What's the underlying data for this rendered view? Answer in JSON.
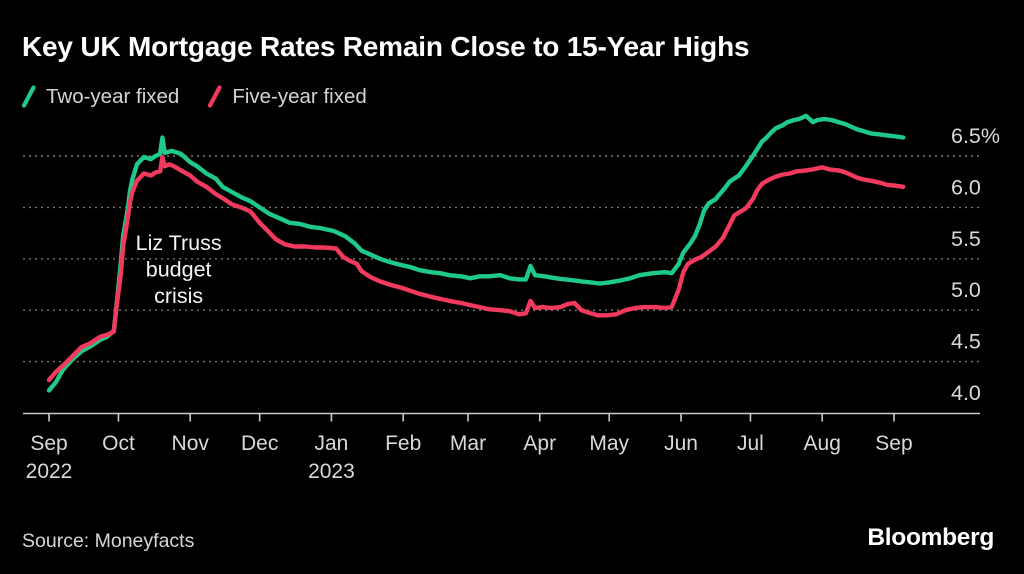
{
  "header": {
    "title": "Key UK Mortgage Rates Remain Close to 15-Year Highs"
  },
  "legend": [
    {
      "label": "Two-year fixed",
      "color": "#1ec98a"
    },
    {
      "label": "Five-year fixed",
      "color": "#f23a5f"
    }
  ],
  "footer": {
    "source": "Source: Moneyfacts",
    "brand": "Bloomberg"
  },
  "chart_data": {
    "type": "line",
    "title": "Key UK Mortgage Rates Remain Close to 15-Year Highs",
    "x_unit": "days since 2022-09-01",
    "x_domain": [
      0,
      369
    ],
    "y_domain": [
      4.0,
      6.9
    ],
    "ylabel": "rate %",
    "grid": "horizontal-dashed",
    "legend_position": "top-left",
    "grid_color": "#787878",
    "axis_color": "#c9c9c9",
    "axis_text_color": "#d9d9d9",
    "annotation": {
      "text": [
        "Liz Truss",
        "budget",
        "crisis"
      ],
      "day": 56,
      "value": 5.4
    },
    "y_ticks": [
      {
        "value": 6.5,
        "label": "6.5%"
      },
      {
        "value": 6.0,
        "label": "6.0"
      },
      {
        "value": 5.5,
        "label": "5.5"
      },
      {
        "value": 5.0,
        "label": "5.0"
      },
      {
        "value": 4.5,
        "label": "4.5"
      },
      {
        "value": 4.0,
        "label": "4.0"
      }
    ],
    "x_ticks": [
      {
        "day": 0,
        "label": "Sep",
        "sublabel": "2022"
      },
      {
        "day": 30,
        "label": "Oct"
      },
      {
        "day": 61,
        "label": "Nov"
      },
      {
        "day": 91,
        "label": "Dec"
      },
      {
        "day": 122,
        "label": "Jan",
        "sublabel": "2023"
      },
      {
        "day": 153,
        "label": "Feb"
      },
      {
        "day": 181,
        "label": "Mar"
      },
      {
        "day": 212,
        "label": "Apr"
      },
      {
        "day": 242,
        "label": "May"
      },
      {
        "day": 273,
        "label": "Jun"
      },
      {
        "day": 303,
        "label": "Jul"
      },
      {
        "day": 334,
        "label": "Aug"
      },
      {
        "day": 365,
        "label": "Sep"
      }
    ],
    "series": [
      {
        "id": "two-year-fixed",
        "name": "Two-year fixed",
        "color": "#1ec98a",
        "points": [
          [
            0,
            4.22
          ],
          [
            3,
            4.3
          ],
          [
            6,
            4.42
          ],
          [
            10,
            4.52
          ],
          [
            14,
            4.6
          ],
          [
            18,
            4.65
          ],
          [
            22,
            4.71
          ],
          [
            25,
            4.74
          ],
          [
            28,
            4.8
          ],
          [
            29,
            5.0
          ],
          [
            31,
            5.46
          ],
          [
            32,
            5.72
          ],
          [
            34,
            5.98
          ],
          [
            35,
            6.16
          ],
          [
            36,
            6.27
          ],
          [
            38,
            6.42
          ],
          [
            41,
            6.49
          ],
          [
            44,
            6.47
          ],
          [
            46,
            6.5
          ],
          [
            48,
            6.52
          ],
          [
            49,
            6.68
          ],
          [
            50,
            6.53
          ],
          [
            53,
            6.55
          ],
          [
            57,
            6.52
          ],
          [
            61,
            6.44
          ],
          [
            64,
            6.4
          ],
          [
            68,
            6.33
          ],
          [
            72,
            6.28
          ],
          [
            75,
            6.2
          ],
          [
            79,
            6.15
          ],
          [
            83,
            6.1
          ],
          [
            87,
            6.06
          ],
          [
            91,
            6.0
          ],
          [
            95,
            5.94
          ],
          [
            100,
            5.89
          ],
          [
            104,
            5.85
          ],
          [
            108,
            5.84
          ],
          [
            113,
            5.81
          ],
          [
            117,
            5.8
          ],
          [
            123,
            5.77
          ],
          [
            128,
            5.72
          ],
          [
            132,
            5.65
          ],
          [
            135,
            5.58
          ],
          [
            139,
            5.54
          ],
          [
            143,
            5.5
          ],
          [
            147,
            5.47
          ],
          [
            152,
            5.44
          ],
          [
            156,
            5.42
          ],
          [
            160,
            5.39
          ],
          [
            165,
            5.37
          ],
          [
            169,
            5.36
          ],
          [
            173,
            5.34
          ],
          [
            178,
            5.33
          ],
          [
            182,
            5.31
          ],
          [
            186,
            5.33
          ],
          [
            190,
            5.33
          ],
          [
            195,
            5.34
          ],
          [
            199,
            5.31
          ],
          [
            203,
            5.3
          ],
          [
            206,
            5.3
          ],
          [
            208,
            5.43
          ],
          [
            210,
            5.34
          ],
          [
            214,
            5.33
          ],
          [
            219,
            5.31
          ],
          [
            223,
            5.3
          ],
          [
            227,
            5.29
          ],
          [
            230,
            5.28
          ],
          [
            234,
            5.27
          ],
          [
            238,
            5.26
          ],
          [
            242,
            5.27
          ],
          [
            247,
            5.29
          ],
          [
            251,
            5.31
          ],
          [
            255,
            5.34
          ],
          [
            261,
            5.36
          ],
          [
            266,
            5.37
          ],
          [
            269,
            5.36
          ],
          [
            272,
            5.45
          ],
          [
            274,
            5.56
          ],
          [
            277,
            5.65
          ],
          [
            279,
            5.72
          ],
          [
            281,
            5.83
          ],
          [
            283,
            5.97
          ],
          [
            285,
            6.04
          ],
          [
            288,
            6.08
          ],
          [
            289,
            6.11
          ],
          [
            292,
            6.19
          ],
          [
            294,
            6.25
          ],
          [
            296,
            6.28
          ],
          [
            298,
            6.31
          ],
          [
            301,
            6.4
          ],
          [
            304,
            6.5
          ],
          [
            306,
            6.57
          ],
          [
            308,
            6.64
          ],
          [
            310,
            6.68
          ],
          [
            312,
            6.73
          ],
          [
            314,
            6.77
          ],
          [
            317,
            6.8
          ],
          [
            319,
            6.83
          ],
          [
            322,
            6.85
          ],
          [
            324,
            6.86
          ],
          [
            327,
            6.89
          ],
          [
            330,
            6.83
          ],
          [
            332,
            6.85
          ],
          [
            335,
            6.86
          ],
          [
            338,
            6.85
          ],
          [
            341,
            6.83
          ],
          [
            344,
            6.81
          ],
          [
            347,
            6.78
          ],
          [
            349,
            6.76
          ],
          [
            352,
            6.74
          ],
          [
            355,
            6.72
          ],
          [
            359,
            6.71
          ],
          [
            362,
            6.7
          ],
          [
            366,
            6.69
          ],
          [
            369,
            6.68
          ]
        ]
      },
      {
        "id": "five-year-fixed",
        "name": "Five-year fixed",
        "color": "#f23a5f",
        "points": [
          [
            0,
            4.32
          ],
          [
            3,
            4.4
          ],
          [
            6,
            4.46
          ],
          [
            10,
            4.55
          ],
          [
            14,
            4.64
          ],
          [
            18,
            4.68
          ],
          [
            22,
            4.74
          ],
          [
            25,
            4.76
          ],
          [
            28,
            4.79
          ],
          [
            29,
            5.0
          ],
          [
            31,
            5.35
          ],
          [
            32,
            5.62
          ],
          [
            34,
            5.89
          ],
          [
            35,
            6.05
          ],
          [
            36,
            6.15
          ],
          [
            38,
            6.26
          ],
          [
            41,
            6.33
          ],
          [
            44,
            6.31
          ],
          [
            46,
            6.34
          ],
          [
            48,
            6.35
          ],
          [
            49,
            6.49
          ],
          [
            50,
            6.4
          ],
          [
            52,
            6.42
          ],
          [
            54,
            6.4
          ],
          [
            57,
            6.36
          ],
          [
            61,
            6.31
          ],
          [
            64,
            6.25
          ],
          [
            68,
            6.2
          ],
          [
            72,
            6.13
          ],
          [
            75,
            6.09
          ],
          [
            79,
            6.03
          ],
          [
            83,
            6.0
          ],
          [
            87,
            5.96
          ],
          [
            91,
            5.85
          ],
          [
            95,
            5.76
          ],
          [
            98,
            5.69
          ],
          [
            102,
            5.64
          ],
          [
            106,
            5.62
          ],
          [
            111,
            5.62
          ],
          [
            115,
            5.61
          ],
          [
            119,
            5.61
          ],
          [
            124,
            5.6
          ],
          [
            127,
            5.52
          ],
          [
            130,
            5.48
          ],
          [
            133,
            5.45
          ],
          [
            135,
            5.38
          ],
          [
            139,
            5.32
          ],
          [
            143,
            5.28
          ],
          [
            147,
            5.25
          ],
          [
            152,
            5.22
          ],
          [
            156,
            5.19
          ],
          [
            160,
            5.16
          ],
          [
            165,
            5.13
          ],
          [
            169,
            5.11
          ],
          [
            173,
            5.09
          ],
          [
            178,
            5.07
          ],
          [
            182,
            5.05
          ],
          [
            186,
            5.03
          ],
          [
            190,
            5.01
          ],
          [
            195,
            5.0
          ],
          [
            199,
            4.99
          ],
          [
            203,
            4.96
          ],
          [
            206,
            4.97
          ],
          [
            208,
            5.09
          ],
          [
            210,
            5.02
          ],
          [
            213,
            5.03
          ],
          [
            217,
            5.02
          ],
          [
            221,
            5.03
          ],
          [
            224,
            5.06
          ],
          [
            227,
            5.07
          ],
          [
            230,
            5.0
          ],
          [
            234,
            4.97
          ],
          [
            237,
            4.95
          ],
          [
            241,
            4.95
          ],
          [
            245,
            4.96
          ],
          [
            249,
            5.0
          ],
          [
            253,
            5.02
          ],
          [
            257,
            5.03
          ],
          [
            262,
            5.03
          ],
          [
            266,
            5.02
          ],
          [
            269,
            5.03
          ],
          [
            272,
            5.2
          ],
          [
            274,
            5.37
          ],
          [
            276,
            5.45
          ],
          [
            279,
            5.49
          ],
          [
            282,
            5.52
          ],
          [
            285,
            5.57
          ],
          [
            288,
            5.62
          ],
          [
            291,
            5.7
          ],
          [
            294,
            5.83
          ],
          [
            296,
            5.92
          ],
          [
            298,
            5.95
          ],
          [
            301,
            5.99
          ],
          [
            304,
            6.08
          ],
          [
            306,
            6.17
          ],
          [
            308,
            6.23
          ],
          [
            311,
            6.27
          ],
          [
            314,
            6.3
          ],
          [
            317,
            6.32
          ],
          [
            320,
            6.33
          ],
          [
            323,
            6.35
          ],
          [
            327,
            6.36
          ],
          [
            330,
            6.37
          ],
          [
            334,
            6.39
          ],
          [
            337,
            6.37
          ],
          [
            341,
            6.36
          ],
          [
            344,
            6.34
          ],
          [
            347,
            6.31
          ],
          [
            349,
            6.29
          ],
          [
            352,
            6.27
          ],
          [
            355,
            6.26
          ],
          [
            359,
            6.24
          ],
          [
            362,
            6.22
          ],
          [
            366,
            6.21
          ],
          [
            369,
            6.2
          ]
        ]
      }
    ]
  }
}
